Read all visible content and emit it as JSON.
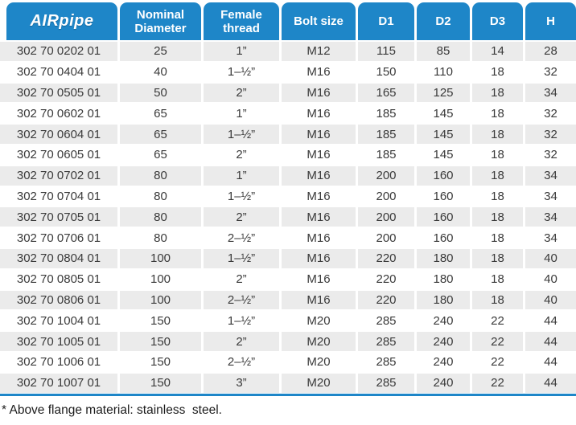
{
  "table": {
    "columns": [
      {
        "label": "AIRpipe"
      },
      {
        "label": "Nominal Diameter"
      },
      {
        "label": "Female thread"
      },
      {
        "label": "Bolt size"
      },
      {
        "label": "D1"
      },
      {
        "label": "D2"
      },
      {
        "label": "D3"
      },
      {
        "label": "H"
      }
    ],
    "rows": [
      [
        "302 70 0202 01",
        "25",
        "1”",
        "M12",
        "115",
        "85",
        "14",
        "28"
      ],
      [
        "302 70 0404 01",
        "40",
        "1–½”",
        "M16",
        "150",
        "110",
        "18",
        "32"
      ],
      [
        "302 70 0505 01",
        "50",
        "2”",
        "M16",
        "165",
        "125",
        "18",
        "34"
      ],
      [
        "302 70 0602 01",
        "65",
        "1”",
        "M16",
        "185",
        "145",
        "18",
        "32"
      ],
      [
        "302 70 0604 01",
        "65",
        "1–½”",
        "M16",
        "185",
        "145",
        "18",
        "32"
      ],
      [
        "302 70 0605 01",
        "65",
        "2”",
        "M16",
        "185",
        "145",
        "18",
        "32"
      ],
      [
        "302 70 0702 01",
        "80",
        "1”",
        "M16",
        "200",
        "160",
        "18",
        "34"
      ],
      [
        "302 70 0704 01",
        "80",
        "1–½”",
        "M16",
        "200",
        "160",
        "18",
        "34"
      ],
      [
        "302 70 0705 01",
        "80",
        "2”",
        "M16",
        "200",
        "160",
        "18",
        "34"
      ],
      [
        "302 70 0706 01",
        "80",
        "2–½”",
        "M16",
        "200",
        "160",
        "18",
        "34"
      ],
      [
        "302 70 0804 01",
        "100",
        "1–½”",
        "M16",
        "220",
        "180",
        "18",
        "40"
      ],
      [
        "302 70 0805 01",
        "100",
        "2”",
        "M16",
        "220",
        "180",
        "18",
        "40"
      ],
      [
        "302 70 0806 01",
        "100",
        "2–½”",
        "M16",
        "220",
        "180",
        "18",
        "40"
      ],
      [
        "302 70 1004 01",
        "150",
        "1–½”",
        "M20",
        "285",
        "240",
        "22",
        "44"
      ],
      [
        "302 70 1005 01",
        "150",
        "2”",
        "M20",
        "285",
        "240",
        "22",
        "44"
      ],
      [
        "302 70 1006 01",
        "150",
        "2–½”",
        "M20",
        "285",
        "240",
        "22",
        "44"
      ],
      [
        "302 70 1007 01",
        "150",
        "3”",
        "M20",
        "285",
        "240",
        "22",
        "44"
      ]
    ]
  },
  "footnote": "* Above flange material: stainless  steel.",
  "colors": {
    "header_blue": "#1e86c8",
    "row_alternate_gray": "#ebebeb",
    "rule_blue": "#1e86c8",
    "text": "#3a3a3a",
    "header_text": "#ffffff"
  }
}
